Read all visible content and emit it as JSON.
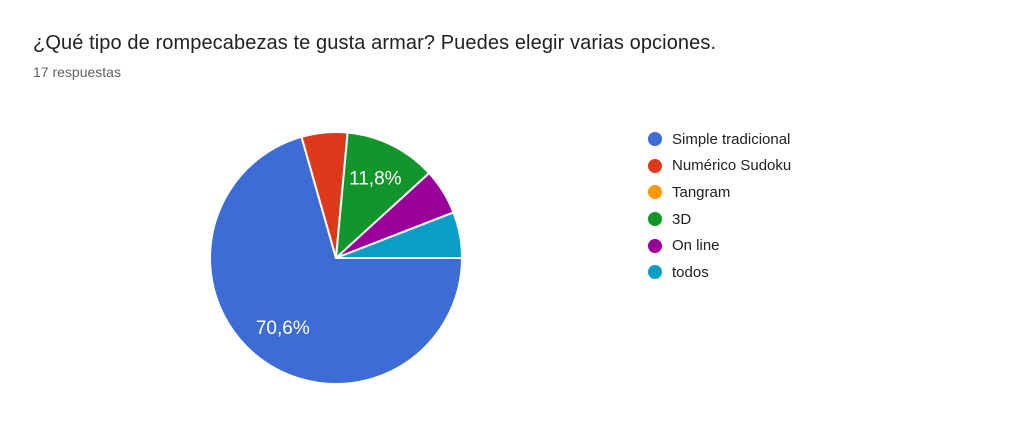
{
  "page": {
    "title": "¿Qué tipo de rompecabezas te gusta armar? Puedes elegir varias opciones.",
    "subtitle": "17 respuestas"
  },
  "colors": {
    "background": "#ffffff",
    "title_text": "#202124",
    "subtitle_text": "#5f6368",
    "legend_text": "#202124",
    "slice_label_text": "#ffffff",
    "slice_divider": "#ffffff"
  },
  "chart_data": {
    "type": "pie",
    "title": "¿Qué tipo de rompecabezas te gusta armar? Puedes elegir varias opciones.",
    "subtitle": "17 respuestas",
    "total_responses": 17,
    "start_angle_from_north_deg": 90,
    "direction": "clockwise",
    "legend_position": "right",
    "slices": [
      {
        "label": "Simple tradicional",
        "value": 12,
        "percent": 70.6,
        "percent_label": "70,6%",
        "color": "#3d6cd7"
      },
      {
        "label": "Numérico Sudoku",
        "value": 1,
        "percent": 5.9,
        "percent_label": null,
        "color": "#df391b"
      },
      {
        "label": "Tangram",
        "value": 0,
        "percent": 0,
        "percent_label": null,
        "color": "#ff9800"
      },
      {
        "label": "3D",
        "value": 2,
        "percent": 11.8,
        "percent_label": "11,8%",
        "color": "#12962b"
      },
      {
        "label": "On line",
        "value": 1,
        "percent": 5.9,
        "percent_label": null,
        "color": "#990099"
      },
      {
        "label": "todos",
        "value": 1,
        "percent": 5.9,
        "percent_label": null,
        "color": "#0a9dc6"
      }
    ]
  }
}
